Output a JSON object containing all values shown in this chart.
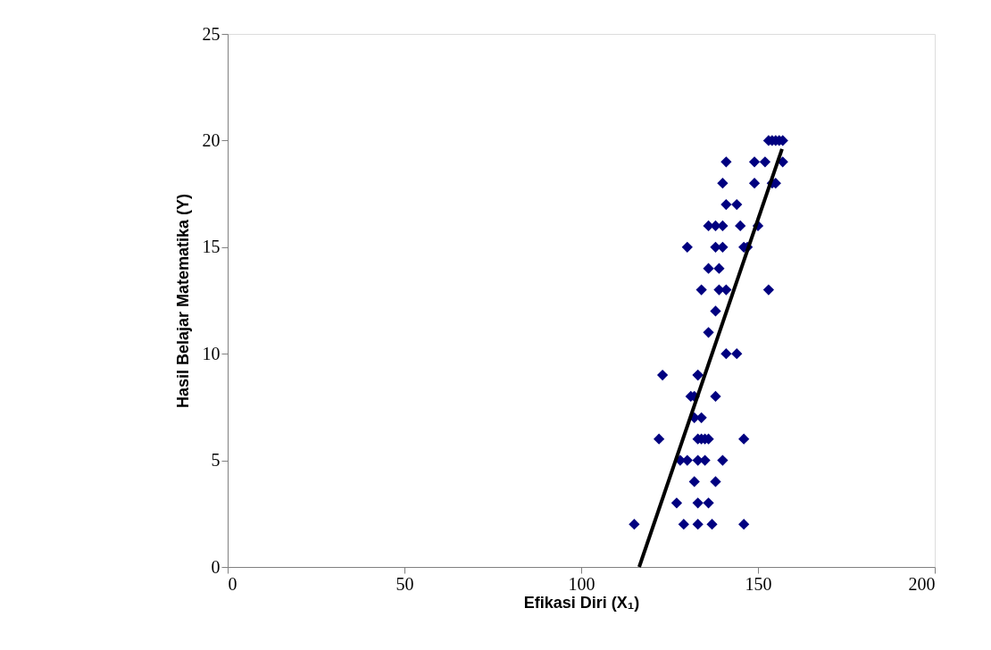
{
  "chart_data": {
    "type": "scatter",
    "xlabel": "Efikasi Diri (X₁)",
    "ylabel": "Hasil Belajar Matematika (Y)",
    "xlim": [
      0,
      200
    ],
    "xticks": [
      0,
      50,
      100,
      150,
      200
    ],
    "ylim": [
      0,
      25
    ],
    "yticks": [
      0,
      5,
      10,
      15,
      20,
      25
    ],
    "grid": false,
    "legend": false,
    "marker": "diamond",
    "series": [
      {
        "color": "#000080",
        "x": [
          153,
          154,
          155,
          156,
          157,
          141,
          149,
          152,
          157,
          140,
          149,
          154,
          155,
          141,
          144,
          136,
          138,
          140,
          145,
          150,
          130,
          138,
          140,
          146,
          147,
          136,
          139,
          134,
          139,
          141,
          153,
          138,
          136,
          141,
          144,
          123,
          133,
          133,
          131,
          132,
          138,
          132,
          134,
          122,
          133,
          134,
          135,
          136,
          146,
          128,
          130,
          133,
          135,
          140,
          132,
          138,
          127,
          133,
          136,
          115,
          129,
          133,
          137,
          146
        ],
        "values": [
          20,
          20,
          20,
          20,
          20,
          19,
          19,
          19,
          19,
          18,
          18,
          18,
          18,
          17,
          17,
          16,
          16,
          16,
          16,
          16,
          15,
          15,
          15,
          15,
          15,
          14,
          14,
          13,
          13,
          13,
          13,
          12,
          11,
          10,
          10,
          9,
          9,
          9,
          8,
          8,
          8,
          7,
          7,
          6,
          6,
          6,
          6,
          6,
          6,
          5,
          5,
          5,
          5,
          5,
          4,
          4,
          3,
          3,
          3,
          2,
          2,
          2,
          2,
          2
        ]
      },
      {
        "type": "line",
        "color": "#000000",
        "marker": "none",
        "x": [
          116.4,
          156.8
        ],
        "values": [
          0,
          19.6
        ]
      }
    ]
  }
}
